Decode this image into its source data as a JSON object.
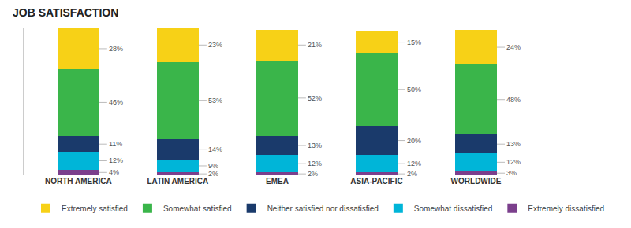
{
  "chart_data": {
    "type": "bar",
    "stacked": true,
    "title": "JOB SATISFACTION",
    "categories": [
      "NORTH AMERICA",
      "LATIN AMERICA",
      "EMEA",
      "ASIA-PACIFIC",
      "WORLDWIDE"
    ],
    "series": [
      {
        "name": "Extremely dissatisfied",
        "color": "#7b3f8c",
        "values": [
          4,
          2,
          2,
          2,
          3
        ],
        "value_labels": [
          "4%",
          "2%",
          "2%",
          "2%",
          "3%"
        ]
      },
      {
        "name": "Somewhat dissatisfied",
        "color": "#00b5d8",
        "values": [
          12,
          9,
          12,
          12,
          12
        ],
        "value_labels": [
          "12%",
          "9%",
          "12%",
          "12%",
          "12%"
        ]
      },
      {
        "name": "Neither satisfied nor dissatisfied",
        "color": "#1a3a6b",
        "values": [
          11,
          14,
          13,
          20,
          13
        ],
        "value_labels": [
          "11%",
          "14%",
          "13%",
          "20%",
          "13%"
        ]
      },
      {
        "name": "Somewhat satisfied",
        "color": "#3ab54a",
        "values": [
          46,
          53,
          52,
          50,
          48
        ],
        "value_labels": [
          "46%",
          "53%",
          "52%",
          "50%",
          "48%"
        ]
      },
      {
        "name": "Extremely satisfied",
        "color": "#f7d117",
        "values": [
          28,
          23,
          21,
          15,
          24
        ],
        "value_labels": [
          "28%",
          "23%",
          "21%",
          "15%",
          "24%"
        ]
      }
    ],
    "ylim": [
      0,
      101
    ],
    "yticks": [],
    "tick_labels": "x",
    "grid": false,
    "legend": "bottom",
    "data_labels": true
  }
}
